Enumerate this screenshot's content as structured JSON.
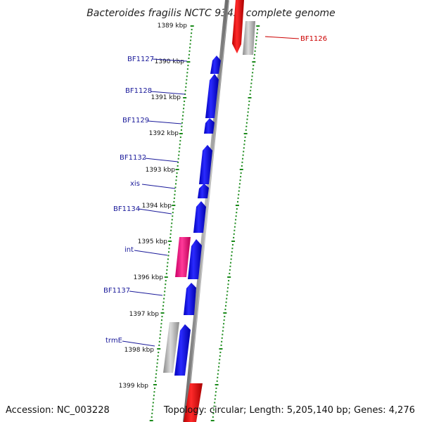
{
  "title": "Bacteroides fragilis NCTC 9343, complete genome",
  "footer": {
    "accession": "Accession: NC_003228",
    "topology": "Topology: circular; Length: 5,205,140 bp; Genes: 4,276"
  },
  "colors": {
    "forward_gene": "#0000ee",
    "rRNA_gene": "#ee0000",
    "integrase_gene": "#ee1177",
    "pseudo_gene": "#b0b0b0",
    "tick": "#1a8a1a",
    "backbone": "#808080",
    "label_blue": "#1a1a9a",
    "label_red": "#cc0000"
  },
  "ticks": [
    "1389 kbp",
    "1390 kbp",
    "1391 kbp",
    "1392 kbp",
    "1393 kbp",
    "1394 kbp",
    "1395 kbp",
    "1396 kbp",
    "1397 kbp",
    "1398 kbp",
    "1399 kbp"
  ],
  "gene_labels": [
    {
      "text": "BF1126",
      "color": "red"
    },
    {
      "text": "BF1127",
      "color": "blue"
    },
    {
      "text": "BF1128",
      "color": "blue"
    },
    {
      "text": "BF1129",
      "color": "blue"
    },
    {
      "text": "BF1132",
      "color": "blue"
    },
    {
      "text": "xis",
      "color": "blue"
    },
    {
      "text": "BF1134",
      "color": "blue"
    },
    {
      "text": "int",
      "color": "blue"
    },
    {
      "text": "BF1137",
      "color": "blue"
    },
    {
      "text": "trmE",
      "color": "blue"
    }
  ]
}
